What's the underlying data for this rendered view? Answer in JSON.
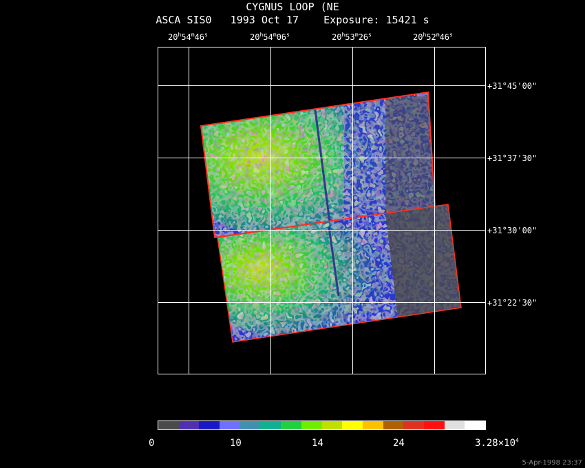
{
  "header": {
    "title": "CYGNUS LOOP (NE",
    "subtitle": "ASCA SIS0   1993 Oct 17    Exposure: 15421 s"
  },
  "ra_ticks": [
    {
      "h": "20",
      "hs": "h",
      "m": "54",
      "ms": "m",
      "s": "46",
      "ss": "s"
    },
    {
      "h": "20",
      "hs": "h",
      "m": "54",
      "ms": "m",
      "s": "06",
      "ss": "s"
    },
    {
      "h": "20",
      "hs": "h",
      "m": "53",
      "ms": "m",
      "s": "26",
      "ss": "s"
    },
    {
      "h": "20",
      "hs": "h",
      "m": "52",
      "ms": "m",
      "s": "46",
      "ss": "s"
    }
  ],
  "dec_ticks": [
    "+31°45'00\"",
    "+31°37'30\"",
    "+31°30'00\"",
    "+31°22'30\""
  ],
  "colorbar": {
    "labels": [
      "0",
      "10",
      "14",
      "24"
    ],
    "max_label_base": "3.28×10",
    "max_label_exp": "4",
    "colors": [
      "#4a4a4a",
      "#5030b0",
      "#1818c8",
      "#7070ff",
      "#4090b0",
      "#10b090",
      "#20d040",
      "#70ee00",
      "#c0e000",
      "#ffff00",
      "#ffc000",
      "#b06000",
      "#e03020",
      "#ff1010",
      "#e0e0e0",
      "#ffffff"
    ]
  },
  "timestamp": "5-Apr-1998 23:37"
}
